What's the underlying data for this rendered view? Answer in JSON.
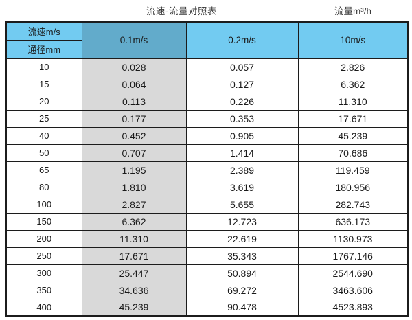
{
  "caption": {
    "title": "流速-流量对照表",
    "unit_label": "流量m³/h"
  },
  "table": {
    "corner": {
      "top": "流速m/s",
      "bottom": "通径mm"
    },
    "columns": [
      "0.1m/s",
      "0.2m/s",
      "10m/s"
    ],
    "rows": [
      {
        "dn": "10",
        "v01": "0.028",
        "v02": "0.057",
        "v10": "2.826"
      },
      {
        "dn": "15",
        "v01": "0.064",
        "v02": "0.127",
        "v10": "6.362"
      },
      {
        "dn": "20",
        "v01": "0.113",
        "v02": "0.226",
        "v10": "11.310"
      },
      {
        "dn": "25",
        "v01": "0.177",
        "v02": "0.353",
        "v10": "17.671"
      },
      {
        "dn": "40",
        "v01": "0.452",
        "v02": "0.905",
        "v10": "45.239"
      },
      {
        "dn": "50",
        "v01": "0.707",
        "v02": "1.414",
        "v10": "70.686"
      },
      {
        "dn": "65",
        "v01": "1.195",
        "v02": "2.389",
        "v10": "119.459"
      },
      {
        "dn": "80",
        "v01": "1.810",
        "v02": "3.619",
        "v10": "180.956"
      },
      {
        "dn": "100",
        "v01": "2.827",
        "v02": "5.655",
        "v10": "282.743"
      },
      {
        "dn": "150",
        "v01": "6.362",
        "v02": "12.723",
        "v10": "636.173"
      },
      {
        "dn": "200",
        "v01": "11.310",
        "v02": "22.619",
        "v10": "1130.973"
      },
      {
        "dn": "250",
        "v01": "17.671",
        "v02": "35.343",
        "v10": "1767.146"
      },
      {
        "dn": "300",
        "v01": "25.447",
        "v02": "50.894",
        "v10": "2544.690"
      },
      {
        "dn": "350",
        "v01": "34.636",
        "v02": "69.272",
        "v10": "3463.606"
      },
      {
        "dn": "400",
        "v01": "45.239",
        "v02": "90.478",
        "v10": "4523.893"
      }
    ]
  },
  "colors": {
    "header_light_blue": "#72CBF1",
    "header_dark_blue": "#62ABCB",
    "shaded_column_gray": "#D9D9D9",
    "border": "#1C1C1C",
    "text": "#1A1A1A"
  },
  "chart_data": {
    "type": "table",
    "title": "流速-流量对照表",
    "unit": "流量m³/h",
    "row_header_label": "通径mm",
    "column_header_label": "流速m/s",
    "categories": [
      10,
      15,
      20,
      25,
      40,
      50,
      65,
      80,
      100,
      150,
      200,
      250,
      300,
      350,
      400
    ],
    "series": [
      {
        "name": "0.1m/s",
        "values": [
          0.028,
          0.064,
          0.113,
          0.177,
          0.452,
          0.707,
          1.195,
          1.81,
          2.827,
          6.362,
          11.31,
          17.671,
          25.447,
          34.636,
          45.239
        ]
      },
      {
        "name": "0.2m/s",
        "values": [
          0.057,
          0.127,
          0.226,
          0.353,
          0.905,
          1.414,
          2.389,
          3.619,
          5.655,
          12.723,
          22.619,
          35.343,
          50.894,
          69.272,
          90.478
        ]
      },
      {
        "name": "10m/s",
        "values": [
          2.826,
          6.362,
          11.31,
          17.671,
          45.239,
          70.686,
          119.459,
          180.956,
          282.743,
          636.173,
          1130.973,
          1767.146,
          2544.69,
          3463.606,
          4523.893
        ]
      }
    ]
  }
}
